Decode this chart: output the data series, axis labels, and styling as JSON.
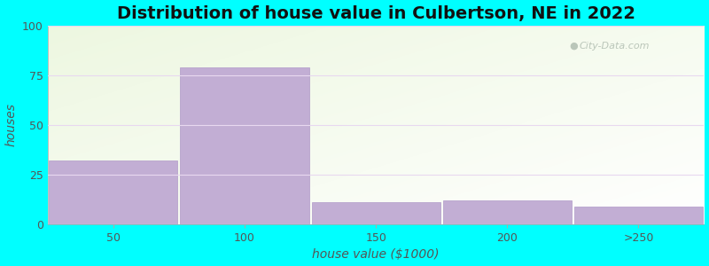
{
  "title": "Distribution of house value in Culbertson, NE in 2022",
  "xlabel": "house value ($1000)",
  "ylabel": "houses",
  "bar_labels": [
    "50",
    "100",
    "150",
    "200",
    ">250"
  ],
  "bar_values": [
    32,
    79,
    11,
    12,
    9
  ],
  "bar_color": "#c2aed4",
  "bar_edgecolor": "#b09ac8",
  "ylim": [
    0,
    100
  ],
  "yticks": [
    0,
    25,
    50,
    75,
    100
  ],
  "background_outer": "#00ffff",
  "title_fontsize": 14,
  "axis_label_fontsize": 10,
  "tick_fontsize": 9,
  "watermark_text": "City-Data.com",
  "watermark_color": "#b0bdb0",
  "grid_color": "#e8d8f0",
  "n_bars": 5
}
